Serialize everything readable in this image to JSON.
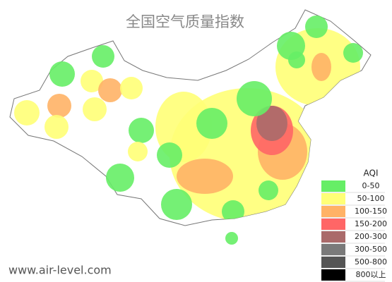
{
  "title": "全国空气质量指数",
  "watermark": "www.air-level.com",
  "legend": {
    "title": "AQI",
    "items": [
      {
        "label": "0-50",
        "color": "#66ee66"
      },
      {
        "label": "50-100",
        "color": "#ffff77"
      },
      {
        "label": "100-150",
        "color": "#ffb266"
      },
      {
        "label": "150-200",
        "color": "#ff6666"
      },
      {
        "label": "200-300",
        "color": "#aa6a6a"
      },
      {
        "label": "300-500",
        "color": "#7a7a7a"
      },
      {
        "label": "500-800",
        "color": "#555555"
      },
      {
        "label": "800以上",
        "color": "#000000"
      }
    ]
  }
}
